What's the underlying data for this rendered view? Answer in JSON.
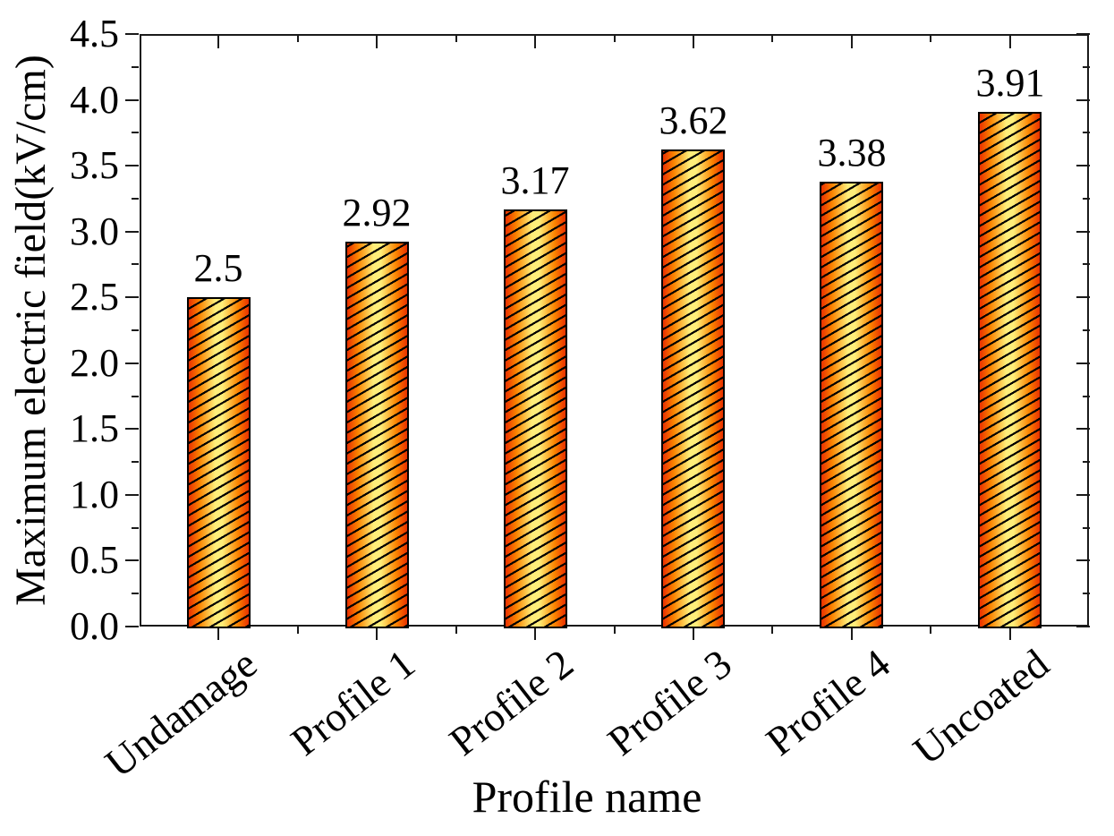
{
  "figure": {
    "background_color": "#ffffff",
    "text_color": "#000000"
  },
  "chart_data": {
    "type": "bar",
    "title": "",
    "xlabel": "Profile name",
    "ylabel": "Maximum electric field(kV/cm)",
    "categories": [
      "Undamage",
      "Profile 1",
      "Profile 2",
      "Profile 3",
      "Profile 4",
      "Uncoated"
    ],
    "values": [
      2.5,
      2.92,
      3.17,
      3.62,
      3.38,
      3.91
    ],
    "bar_value_labels": [
      "2.5",
      "2.92",
      "3.17",
      "3.62",
      "3.38",
      "3.91"
    ],
    "ylim": [
      0,
      4.5
    ],
    "ytick_step": 0.5,
    "yminor_step": 0.25,
    "ytick_labels": [
      "0.0",
      "0.5",
      "1.0",
      "1.5",
      "2.0",
      "2.5",
      "3.0",
      "3.5",
      "4.0",
      "4.5"
    ],
    "grid": false,
    "legend": null,
    "bar_style": {
      "edge_color": "#000000",
      "gradient_edge_color": "#e93000",
      "gradient_mid_color": "#fb8400",
      "gradient_center_color": "#ffee7a",
      "hatch_color": "#000000",
      "hatch_style": "forward-diagonal-30deg"
    },
    "axis_style": {
      "spine_color": "#1a1a1a",
      "left_bottom_ticks": "out",
      "right_top_ticks": "in",
      "xlabel_rotation_deg": -38
    }
  }
}
